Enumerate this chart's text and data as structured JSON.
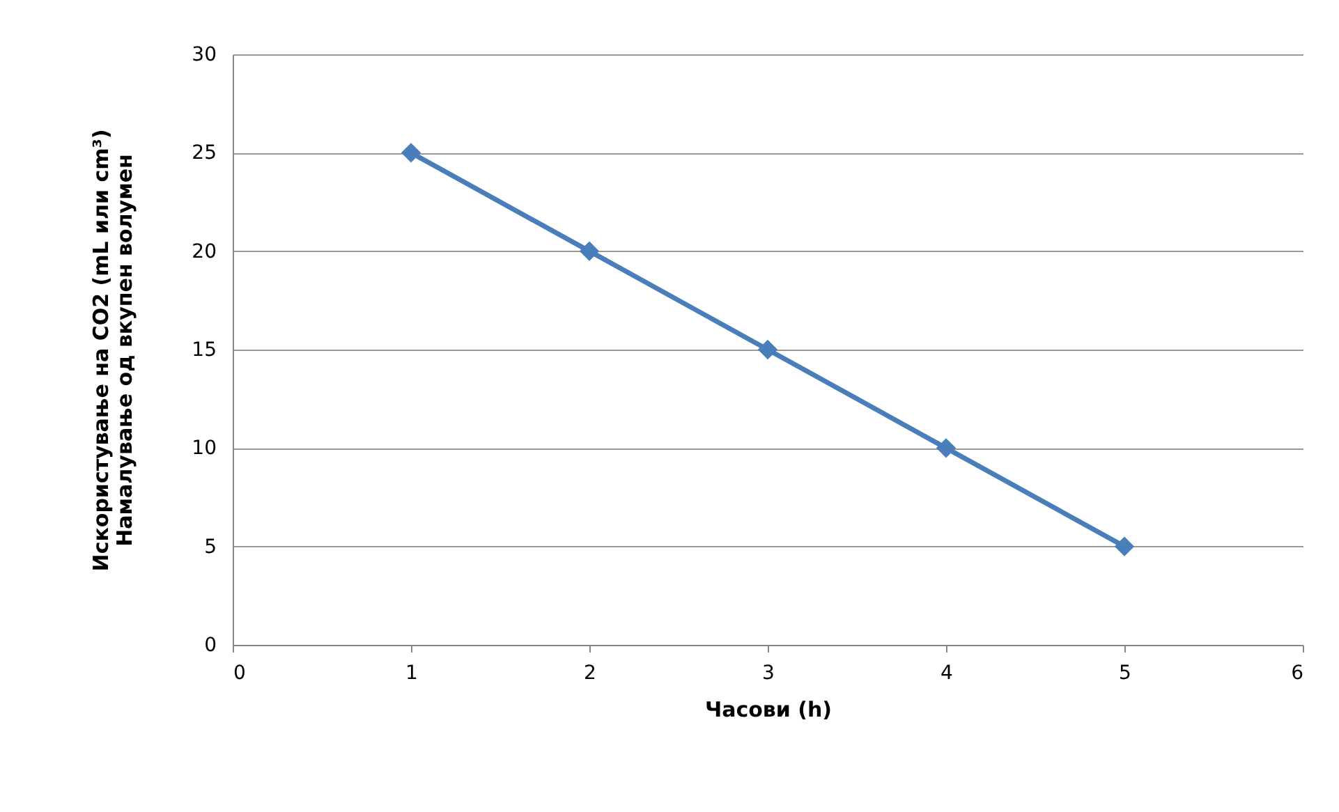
{
  "chart_data": {
    "type": "line",
    "xlabel": "Часови (h)",
    "ylabel": "Искористување на CO2 (mL или cm³)\nНамалување од вкупен волумен",
    "x": [
      1,
      2,
      3,
      4,
      5
    ],
    "series": [
      {
        "color": "#4a7ebb",
        "values": [
          25,
          20,
          15,
          10,
          5
        ]
      }
    ],
    "xlim": [
      0,
      6
    ],
    "xticks": [
      0,
      1,
      2,
      3,
      4,
      5,
      6
    ],
    "ylim": [
      0,
      30
    ],
    "yticks": [
      0,
      5,
      10,
      15,
      20,
      25,
      30
    ],
    "grid": "y",
    "marker": "diamond",
    "line_style": "solid"
  }
}
